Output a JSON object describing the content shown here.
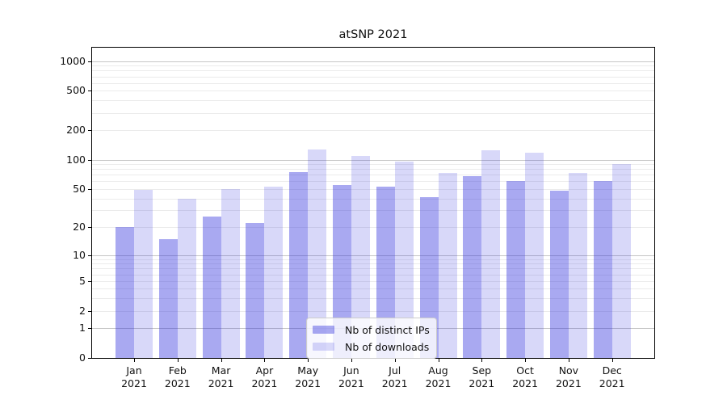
{
  "title": "atSNP 2021",
  "legend": {
    "items": [
      {
        "id": "ips",
        "label": "Nb of distinct IPs"
      },
      {
        "id": "downloads",
        "label": "Nb of downloads"
      }
    ]
  },
  "y_axis": {
    "tick_labels": [
      "0",
      "1",
      "2",
      "5",
      "10",
      "20",
      "50",
      "100",
      "200",
      "500",
      "1000"
    ]
  },
  "x_axis": {
    "year_line": "2021"
  },
  "colors": {
    "ips_fill": "rgba(40,40,220,0.40)",
    "downloads_fill": "rgba(40,40,220,0.18)",
    "ips_hex": "#a9a9f1",
    "downloads_hex": "#d8d8f8",
    "grid_major": "#c6c6c6",
    "grid_minor": "#ebebeb",
    "spine": "#000000",
    "text": "#111111"
  },
  "chart_data": {
    "type": "bar",
    "title": "atSNP 2021",
    "categories": [
      "Jan",
      "Feb",
      "Mar",
      "Apr",
      "May",
      "Jun",
      "Jul",
      "Aug",
      "Sep",
      "Oct",
      "Nov",
      "Dec"
    ],
    "category_year": "2021",
    "series": [
      {
        "name": "Nb of distinct IPs",
        "values": [
          20,
          15,
          26,
          22,
          75,
          55,
          53,
          41,
          68,
          60,
          48,
          61
        ]
      },
      {
        "name": "Nb of downloads",
        "values": [
          49,
          40,
          50,
          53,
          127,
          110,
          95,
          73,
          125,
          118,
          73,
          91
        ]
      }
    ],
    "yscale": "log1p",
    "y_ticks": [
      0,
      1,
      2,
      5,
      10,
      20,
      50,
      100,
      200,
      500,
      1000
    ],
    "ylim": [
      0,
      1366
    ],
    "grid": true,
    "legend_position": "lower center"
  }
}
